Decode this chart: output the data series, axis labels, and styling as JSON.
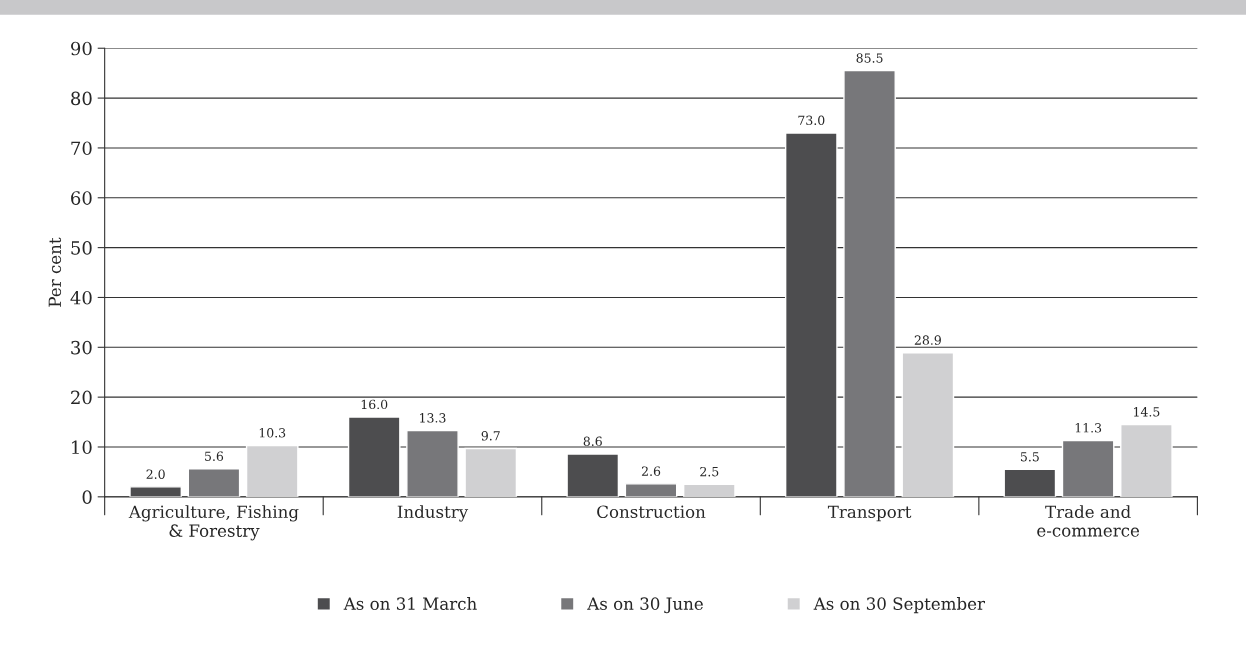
{
  "chart_data": {
    "type": "bar",
    "ylabel": "Per cent",
    "categories": [
      "Agriculture, Fishing\n& Forestry",
      "Industry",
      "Construction",
      "Transport",
      "Trade and\ne-commerce"
    ],
    "series": [
      {
        "name": "As on 31 March",
        "color": "#4d4d4f",
        "values": [
          2.0,
          16.0,
          8.6,
          73.0,
          5.5
        ],
        "value_labels": [
          "2.0",
          "16.0",
          "8.6",
          "73.0",
          "5.5"
        ]
      },
      {
        "name": "As on 30 June",
        "color": "#77777a",
        "values": [
          5.6,
          13.3,
          2.6,
          85.5,
          11.3
        ],
        "value_labels": [
          "5.6",
          "13.3",
          "2.6",
          "85.5",
          "11.3"
        ]
      },
      {
        "name": "As on 30 September",
        "color": "#d0d0d2",
        "values": [
          10.3,
          9.7,
          2.5,
          28.9,
          14.5
        ],
        "value_labels": [
          "10.3",
          "9.7",
          "2.5",
          "28.9",
          "14.5"
        ]
      }
    ],
    "ylim": [
      0,
      90
    ],
    "yticks": [
      0,
      10,
      20,
      30,
      40,
      50,
      60,
      70,
      80,
      90
    ],
    "grid": "y",
    "legend": "bottom"
  }
}
